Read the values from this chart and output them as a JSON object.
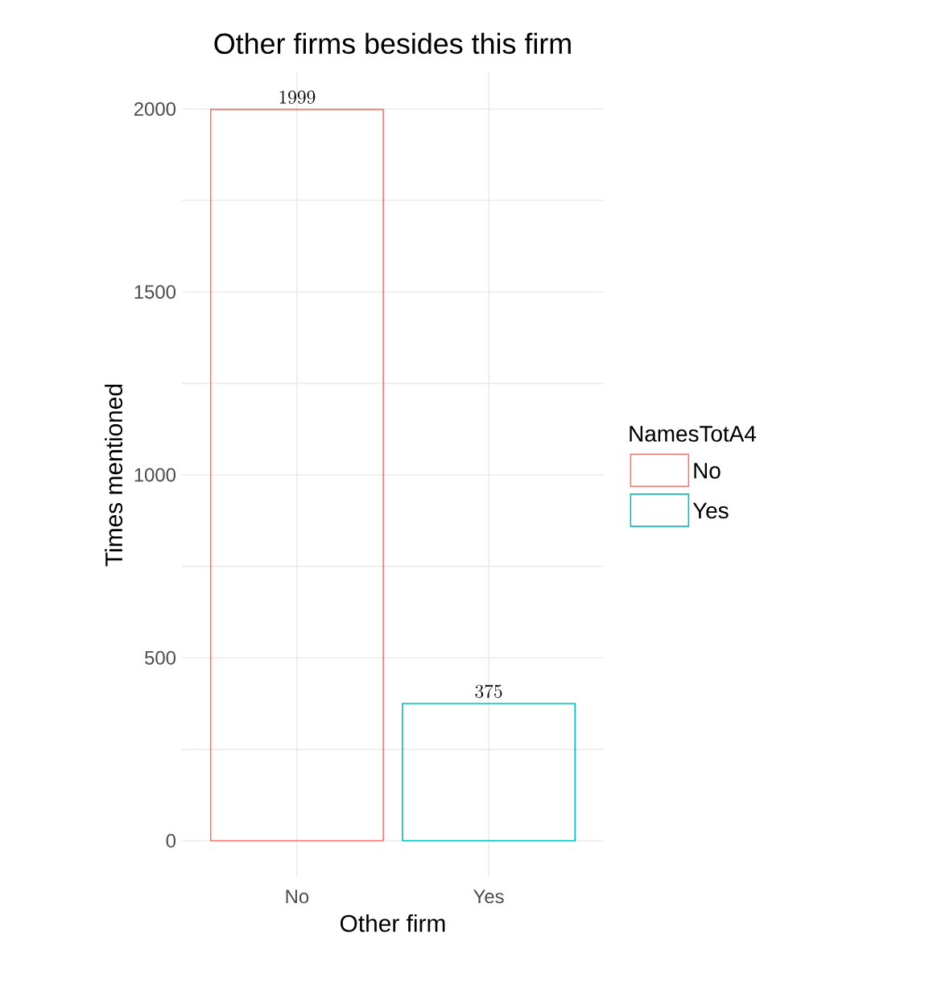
{
  "chart_data": {
    "type": "bar",
    "title": "Other firms besides this firm",
    "xlabel": "Other firm",
    "ylabel": "Times mentioned",
    "legend_title": "NamesTotA4",
    "categories": [
      "No",
      "Yes"
    ],
    "series": [
      {
        "name": "No",
        "color": "#f8766d",
        "values": [
          1999,
          null
        ]
      },
      {
        "name": "Yes",
        "color": "#00bfc4",
        "values": [
          null,
          375
        ]
      }
    ],
    "ylim": [
      -100,
      2100
    ],
    "yticks": [
      0,
      500,
      1000,
      1500,
      2000
    ],
    "grid": true,
    "legend": "right",
    "data_labels": true
  }
}
